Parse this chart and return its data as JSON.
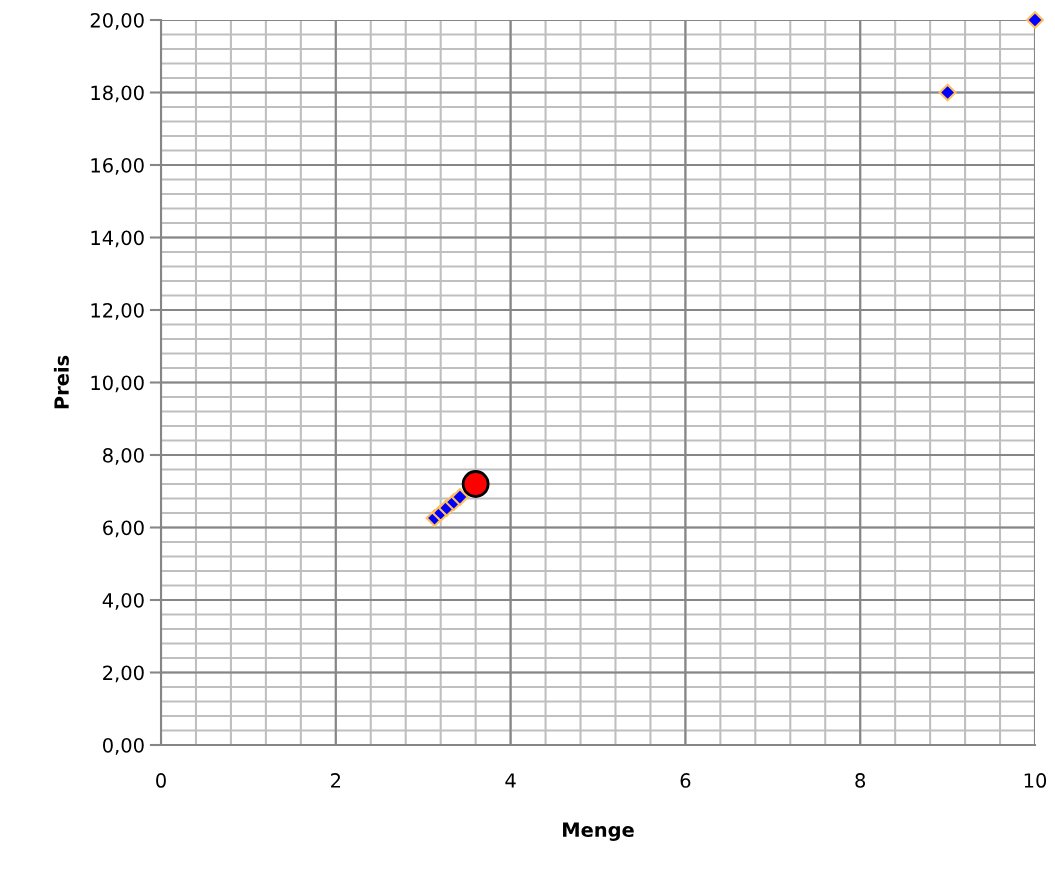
{
  "chart_data": {
    "type": "scatter",
    "xlabel": "Menge",
    "ylabel": "Preis",
    "xlim": [
      0,
      10
    ],
    "xticks": [
      0,
      2,
      4,
      6,
      8,
      10
    ],
    "ylim": [
      0,
      20
    ],
    "yticks": [
      {
        "value": 0,
        "label": "0,00"
      },
      {
        "value": 2,
        "label": "2,00"
      },
      {
        "value": 4,
        "label": "4,00"
      },
      {
        "value": 6,
        "label": "6,00"
      },
      {
        "value": 8,
        "label": "8,00"
      },
      {
        "value": 10,
        "label": "10,00"
      },
      {
        "value": 12,
        "label": "12,00"
      },
      {
        "value": 14,
        "label": "14,00"
      },
      {
        "value": 16,
        "label": "16,00"
      },
      {
        "value": 18,
        "label": "18,00"
      },
      {
        "value": 20,
        "label": "20,00"
      }
    ],
    "grid": true,
    "legend": false,
    "series": [
      {
        "color": "#0000ff",
        "marker": "diamond",
        "x": [
          3.13,
          3.2,
          3.27,
          3.35,
          3.42,
          9,
          10
        ],
        "values": [
          6.26,
          6.4,
          6.54,
          6.7,
          6.84,
          18,
          20
        ]
      },
      {
        "color": "#ff0000",
        "marker": "circle",
        "x": [
          3.6
        ],
        "values": [
          7.2
        ]
      }
    ]
  }
}
